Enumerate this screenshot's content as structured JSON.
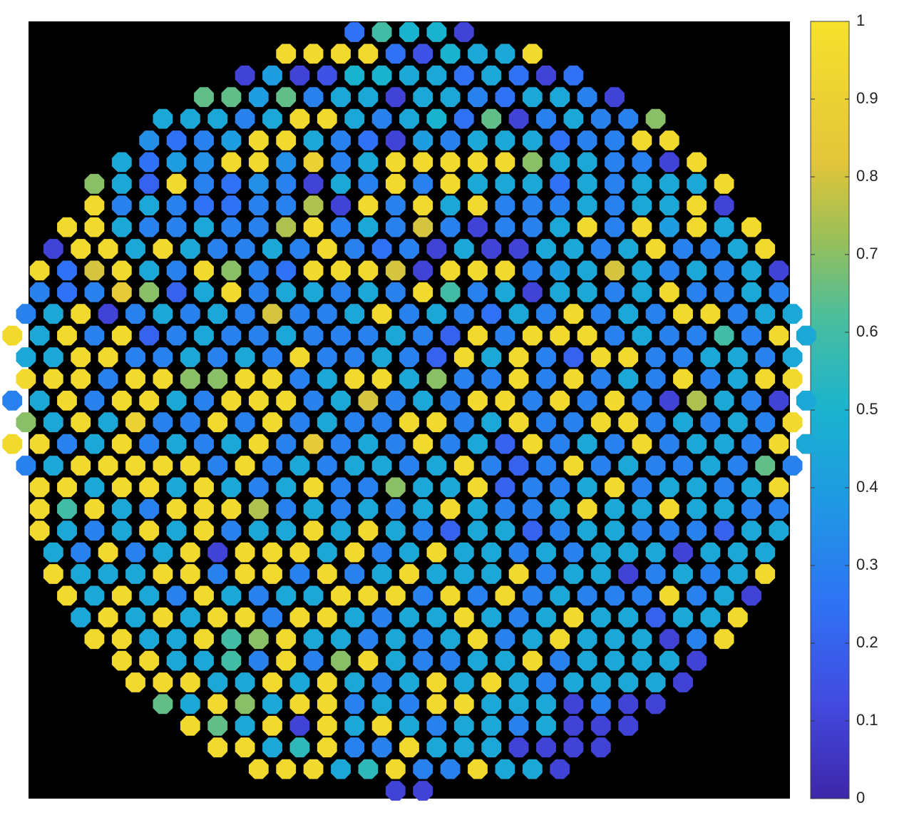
{
  "chart_data": {
    "type": "heatmap",
    "colormap": "parula",
    "zlim": [
      0,
      1
    ],
    "zticks": [
      0,
      0.1,
      0.2,
      0.3,
      0.4,
      0.5,
      0.6,
      0.7,
      0.8,
      0.9,
      1
    ],
    "values": [
      [
        0.25,
        0.6,
        0.5,
        0.5,
        0.1
      ],
      [
        0.95,
        0.95,
        0.95,
        0.95,
        0.25,
        0.15,
        0.5,
        0.45,
        0.45,
        0.95
      ],
      [
        0.1,
        0.4,
        0.1,
        0.15,
        0.5,
        0.5,
        0.45,
        0.45,
        0.25,
        0.45,
        0.25,
        0.1,
        0.25
      ],
      [
        0.65,
        0.65,
        0.4,
        0.65,
        0.3,
        0.45,
        0.45,
        0.1,
        0.45,
        0.45,
        0.3,
        0.25,
        0.45,
        0.45,
        0.3,
        0.1
      ],
      [
        0.45,
        0.45,
        0.45,
        0.3,
        0.45,
        0.95,
        0.95,
        0.45,
        0.3,
        0.45,
        0.5,
        0.25,
        0.65,
        0.1,
        0.3,
        0.45,
        0.3,
        0.3,
        0.7
      ],
      [
        0.35,
        0.25,
        0.3,
        0.4,
        0.95,
        0.95,
        0.45,
        0.3,
        0.25,
        0.1,
        0.4,
        0.3,
        0.45,
        0.45,
        0.45,
        0.25,
        0.3,
        0.3,
        0.95,
        0.95
      ],
      [
        0.45,
        0.25,
        0.4,
        0.35,
        0.95,
        0.95,
        0.35,
        0.9,
        0.3,
        0.45,
        0.95,
        0.95,
        0.95,
        0.95,
        0.95,
        0.7,
        0.45,
        0.45,
        0.3,
        0.3,
        0.1,
        0.95
      ],
      [
        0.7,
        0.45,
        0.2,
        0.95,
        0.3,
        0.25,
        0.35,
        0.3,
        0.1,
        0.45,
        0.3,
        0.95,
        0.3,
        0.95,
        0.45,
        0.45,
        0.45,
        0.25,
        0.45,
        0.3,
        0.45,
        0.45,
        0.45,
        0.95
      ],
      [
        0.95,
        0.3,
        0.45,
        0.3,
        0.25,
        0.25,
        0.3,
        0.3,
        0.75,
        0.1,
        0.95,
        0.3,
        0.95,
        0.45,
        0.95,
        0.3,
        0.3,
        0.3,
        0.45,
        0.3,
        0.45,
        0.45,
        0.95,
        0.1
      ],
      [
        0.95,
        0.95,
        0.45,
        0.3,
        0.3,
        0.45,
        0.3,
        0.3,
        0.75,
        0.95,
        0.3,
        0.45,
        0.3,
        0.8,
        0.3,
        0.1,
        0.3,
        0.3,
        0.45,
        0.95,
        0.3,
        0.95,
        0.4,
        0.95,
        0.45,
        0.95
      ],
      [
        0.1,
        0.95,
        0.95,
        0.45,
        0.95,
        0.45,
        0.3,
        0.3,
        0.45,
        0.3,
        0.95,
        0.3,
        0.25,
        0.3,
        0.1,
        0.45,
        0.1,
        0.1,
        0.45,
        0.45,
        0.3,
        0.45,
        0.95,
        0.3,
        0.3,
        0.45,
        0.95
      ],
      [
        0.95,
        0.25,
        0.8,
        0.95,
        0.45,
        0.3,
        0.95,
        0.7,
        0.3,
        0.25,
        0.95,
        0.95,
        0.95,
        0.8,
        0.1,
        0.95,
        0.95,
        0.95,
        0.3,
        0.4,
        0.45,
        0.8,
        0.45,
        0.3,
        0.45,
        0.3,
        0.45,
        0.1
      ],
      [
        0.3,
        0.25,
        0.3,
        0.85,
        0.7,
        0.2,
        0.45,
        0.95,
        0.3,
        0.45,
        0.45,
        0.3,
        0.45,
        0.3,
        0.95,
        0.6,
        0.3,
        0.45,
        0.1,
        0.45,
        0.45,
        0.3,
        0.45,
        0.95,
        0.3,
        0.3,
        0.45,
        0.3
      ],
      [
        0.3,
        0.45,
        0.95,
        0.1,
        0.3,
        0.45,
        0.3,
        0.45,
        0.3,
        0.8,
        0.3,
        0.3,
        0.45,
        0.95,
        0.3,
        0.45,
        0.3,
        0.25,
        0.45,
        0.3,
        0.95,
        0.3,
        0.45,
        0.3,
        0.95,
        0.95,
        0.3,
        0.45,
        0.45
      ],
      [
        0.95,
        0.45,
        0.95,
        0.3,
        0.95,
        0.2,
        0.3,
        0.45,
        0.3,
        0.3,
        0.45,
        0.3,
        0.3,
        0.3,
        0.45,
        0.3,
        0.2,
        0.95,
        0.3,
        0.95,
        0.95,
        0.95,
        0.3,
        0.45,
        0.3,
        0.3,
        0.6,
        0.3,
        0.95,
        0.45
      ],
      [
        0.45,
        0.45,
        0.95,
        0.95,
        0.3,
        0.3,
        0.45,
        0.3,
        0.45,
        0.3,
        0.95,
        0.3,
        0.3,
        0.45,
        0.3,
        0.2,
        0.95,
        0.45,
        0.95,
        0.3,
        0.2,
        0.95,
        0.95,
        0.3,
        0.3,
        0.45,
        0.45,
        0.3,
        0.45
      ],
      [
        0.95,
        0.95,
        0.95,
        0.3,
        0.95,
        0.95,
        0.7,
        0.7,
        0.95,
        0.95,
        0.3,
        0.45,
        0.95,
        0.95,
        0.45,
        0.7,
        0.3,
        0.3,
        0.95,
        0.3,
        0.95,
        0.3,
        0.45,
        0.3,
        0.95,
        0.3,
        0.45,
        0.95,
        0.95
      ],
      [
        0.3,
        0.45,
        0.95,
        0.3,
        0.95,
        0.95,
        0.45,
        0.3,
        0.95,
        0.95,
        0.95,
        0.3,
        0.45,
        0.8,
        0.3,
        0.45,
        0.3,
        0.95,
        0.95,
        0.3,
        0.95,
        0.3,
        0.95,
        0.3,
        0.1,
        0.75,
        0.45,
        0.3,
        0.1,
        0.45
      ],
      [
        0.7,
        0.45,
        0.95,
        0.45,
        0.9,
        0.3,
        0.3,
        0.95,
        0.3,
        0.95,
        0.3,
        0.45,
        0.3,
        0.3,
        0.95,
        0.95,
        0.3,
        0.45,
        0.95,
        0.3,
        0.3,
        0.95,
        0.95,
        0.3,
        0.45,
        0.3,
        0.45,
        0.3,
        0.95
      ],
      [
        0.95,
        0.95,
        0.3,
        0.45,
        0.95,
        0.3,
        0.45,
        0.3,
        0.45,
        0.95,
        0.3,
        0.85,
        0.3,
        0.45,
        0.3,
        0.95,
        0.3,
        0.45,
        0.2,
        0.95,
        0.3,
        0.45,
        0.3,
        0.95,
        0.3,
        0.45,
        0.45,
        0.3,
        0.95,
        0.45
      ],
      [
        0.3,
        0.45,
        0.95,
        0.95,
        0.95,
        0.95,
        0.95,
        0.3,
        0.95,
        0.3,
        0.45,
        0.3,
        0.45,
        0.45,
        0.3,
        0.45,
        0.95,
        0.3,
        0.2,
        0.3,
        0.95,
        0.3,
        0.45,
        0.3,
        0.3,
        0.45,
        0.3,
        0.65,
        0.3
      ],
      [
        0.95,
        0.95,
        0.45,
        0.95,
        0.95,
        0.45,
        0.95,
        0.45,
        0.3,
        0.45,
        0.95,
        0.3,
        0.3,
        0.7,
        0.45,
        0.45,
        0.95,
        0.2,
        0.3,
        0.3,
        0.45,
        0.95,
        0.3,
        0.45,
        0.45,
        0.3,
        0.45,
        0.95
      ],
      [
        0.95,
        0.6,
        0.95,
        0.45,
        0.3,
        0.95,
        0.95,
        0.95,
        0.75,
        0.3,
        0.45,
        0.3,
        0.45,
        0.3,
        0.45,
        0.95,
        0.45,
        0.3,
        0.3,
        0.45,
        0.95,
        0.45,
        0.45,
        0.95,
        0.45,
        0.45,
        0.3,
        0.3
      ],
      [
        0.95,
        0.45,
        0.3,
        0.45,
        0.95,
        0.45,
        0.95,
        0.3,
        0.45,
        0.45,
        0.95,
        0.45,
        0.95,
        0.45,
        0.3,
        0.2,
        0.45,
        0.45,
        0.2,
        0.3,
        0.45,
        0.45,
        0.3,
        0.3,
        0.3,
        0.2,
        0.45,
        0.45
      ],
      [
        0.45,
        0.3,
        0.95,
        0.3,
        0.45,
        0.95,
        0.1,
        0.95,
        0.95,
        0.95,
        0.45,
        0.95,
        0.3,
        0.45,
        0.95,
        0.45,
        0.45,
        0.3,
        0.45,
        0.3,
        0.45,
        0.45,
        0.45,
        0.1,
        0.45,
        0.45,
        0.45
      ],
      [
        0.95,
        0.45,
        0.45,
        0.45,
        0.95,
        0.95,
        0.3,
        0.95,
        0.95,
        0.3,
        0.95,
        0.3,
        0.45,
        0.95,
        0.45,
        0.45,
        0.45,
        0.95,
        0.3,
        0.45,
        0.45,
        0.1,
        0.3,
        0.45,
        0.3,
        0.45,
        0.95
      ],
      [
        0.95,
        0.45,
        0.95,
        0.45,
        0.3,
        0.95,
        0.45,
        0.3,
        0.45,
        0.45,
        0.95,
        0.95,
        0.95,
        0.3,
        0.95,
        0.3,
        0.95,
        0.3,
        0.45,
        0.3,
        0.3,
        0.3,
        0.95,
        0.3,
        0.45,
        0.1
      ],
      [
        0.45,
        0.95,
        0.45,
        0.95,
        0.45,
        0.95,
        0.95,
        0.3,
        0.95,
        0.95,
        0.45,
        0.3,
        0.45,
        0.45,
        0.95,
        0.45,
        0.3,
        0.45,
        0.95,
        0.45,
        0.45,
        0.2,
        0.45,
        0.45,
        0.95
      ],
      [
        0.95,
        0.95,
        0.45,
        0.45,
        0.95,
        0.6,
        0.7,
        0.95,
        0.45,
        0.45,
        0.3,
        0.45,
        0.3,
        0.45,
        0.95,
        0.3,
        0.45,
        0.95,
        0.45,
        0.45,
        0.45,
        0.1,
        0.3,
        0.95
      ],
      [
        0.95,
        0.95,
        0.45,
        0.45,
        0.6,
        0.3,
        0.95,
        0.3,
        0.7,
        0.95,
        0.45,
        0.3,
        0.3,
        0.45,
        0.45,
        0.95,
        0.3,
        0.45,
        0.45,
        0.45,
        0.45,
        0.1
      ],
      [
        0.95,
        0.95,
        0.95,
        0.45,
        0.45,
        0.95,
        0.45,
        0.95,
        0.45,
        0.3,
        0.45,
        0.95,
        0.45,
        0.95,
        0.45,
        0.3,
        0.45,
        0.45,
        0.45,
        0.45,
        0.1
      ],
      [
        0.65,
        0.45,
        0.95,
        0.7,
        0.45,
        0.95,
        0.95,
        0.3,
        0.45,
        0.3,
        0.95,
        0.95,
        0.45,
        0.45,
        0.45,
        0.1,
        0.3,
        0.1,
        0.1
      ],
      [
        0.95,
        0.65,
        0.45,
        0.95,
        0.1,
        0.95,
        0.45,
        0.95,
        0.45,
        0.3,
        0.45,
        0.45,
        0.3,
        0.45,
        0.1,
        0.1,
        0.1
      ],
      [
        0.95,
        0.95,
        0.45,
        0.55,
        0.95,
        0.3,
        0.3,
        0.95,
        0.45,
        0.45,
        0.45,
        0.1,
        0.1,
        0.1,
        0.1
      ],
      [
        0.95,
        0.95,
        0.95,
        0.45,
        0.55,
        0.95,
        0.3,
        0.3,
        0.95,
        0.45,
        0.45,
        0.1
      ],
      [
        0.1,
        0.1
      ]
    ]
  }
}
